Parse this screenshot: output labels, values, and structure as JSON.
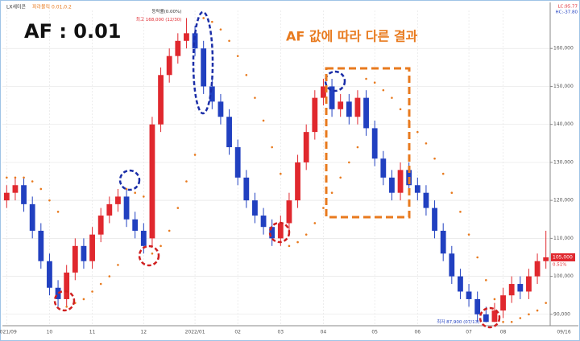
{
  "chart_data": {
    "type": "candlestick",
    "title": "LX세미콘",
    "headline": "AF : 0.01",
    "subtitle": "AF 값에 따라 다른 결과",
    "categories": [
      "2021/09",
      null,
      null,
      null,
      null,
      "10",
      null,
      null,
      null,
      null,
      "11",
      null,
      null,
      null,
      null,
      null,
      "12",
      null,
      null,
      null,
      null,
      null,
      "2022/01",
      null,
      null,
      null,
      null,
      "02",
      null,
      null,
      null,
      null,
      "03",
      null,
      null,
      null,
      null,
      "04",
      null,
      null,
      null,
      null,
      null,
      "05",
      null,
      null,
      null,
      null,
      "06",
      null,
      null,
      null,
      null,
      null,
      "07",
      null,
      null,
      null,
      "08",
      null,
      null,
      null,
      null,
      null
    ],
    "end_label": "09/16",
    "open": [
      120000,
      122000,
      124000,
      119000,
      112000,
      104000,
      97000,
      94000,
      101000,
      108000,
      104000,
      111000,
      116000,
      119000,
      121000,
      115000,
      112000,
      110000,
      140000,
      153000,
      158000,
      162000,
      164000,
      160000,
      150000,
      146000,
      142000,
      134000,
      126000,
      120000,
      116000,
      113000,
      110000,
      114000,
      120000,
      130000,
      138000,
      147000,
      150000,
      144000,
      146000,
      142000,
      147000,
      139000,
      131000,
      126000,
      122000,
      128000,
      124000,
      122000,
      118000,
      112000,
      106000,
      100000,
      96000,
      94000,
      90000,
      88000,
      91000,
      95000,
      98000,
      96000,
      100000,
      104000
    ],
    "high": [
      124000,
      126000,
      126000,
      121000,
      114000,
      106000,
      99000,
      103000,
      110000,
      110000,
      113000,
      118000,
      121000,
      123000,
      123000,
      117000,
      114000,
      142000,
      155000,
      160000,
      164000,
      168000,
      166000,
      162000,
      152000,
      148000,
      144000,
      136000,
      128000,
      122000,
      118000,
      115000,
      116000,
      122000,
      132000,
      140000,
      149000,
      152000,
      152000,
      148000,
      148000,
      149000,
      149000,
      141000,
      133000,
      128000,
      130000,
      130000,
      126000,
      124000,
      120000,
      114000,
      108000,
      102000,
      98000,
      96000,
      92000,
      93000,
      97000,
      100000,
      100000,
      102000,
      106000,
      112000
    ],
    "low": [
      118000,
      120000,
      117000,
      110000,
      102000,
      95000,
      92000,
      92000,
      99000,
      102000,
      102000,
      109000,
      114000,
      117000,
      113000,
      110000,
      106000,
      108000,
      138000,
      151000,
      156000,
      160000,
      158000,
      148000,
      144000,
      140000,
      132000,
      124000,
      118000,
      114000,
      111000,
      108000,
      108000,
      112000,
      118000,
      128000,
      136000,
      145000,
      142000,
      142000,
      140000,
      140000,
      137000,
      129000,
      124000,
      120000,
      120000,
      122000,
      120000,
      116000,
      110000,
      104000,
      98000,
      94000,
      92000,
      88000,
      87900,
      88000,
      89000,
      93000,
      94000,
      94000,
      98000,
      102000
    ],
    "close": [
      122000,
      124000,
      119000,
      112000,
      104000,
      97000,
      94000,
      101000,
      108000,
      104000,
      111000,
      116000,
      119000,
      121000,
      115000,
      112000,
      108000,
      140000,
      153000,
      158000,
      162000,
      164000,
      160000,
      150000,
      146000,
      142000,
      134000,
      126000,
      120000,
      116000,
      113000,
      110000,
      114000,
      120000,
      130000,
      138000,
      147000,
      150000,
      144000,
      146000,
      142000,
      147000,
      139000,
      131000,
      126000,
      122000,
      128000,
      124000,
      122000,
      118000,
      112000,
      106000,
      100000,
      96000,
      94000,
      90000,
      88000,
      91000,
      95000,
      98000,
      96000,
      100000,
      104000,
      105000
    ],
    "up_color": "#e0282e",
    "down_color": "#2140c0",
    "sar": {
      "name": "파라볼릭 0.01,0.2",
      "color": "#e87a1e",
      "values": [
        126000,
        126000,
        126000,
        125000,
        123000,
        120000,
        117000,
        92000,
        93000,
        94000,
        96000,
        98000,
        100000,
        103000,
        123000,
        122000,
        121000,
        106000,
        108000,
        112000,
        118000,
        125000,
        132000,
        168000,
        167000,
        165000,
        162000,
        158000,
        153000,
        147000,
        141000,
        134000,
        127000,
        108000,
        109000,
        111000,
        114000,
        118000,
        122000,
        126000,
        130000,
        134000,
        152000,
        151000,
        149000,
        147000,
        144000,
        141000,
        138000,
        135000,
        131000,
        127000,
        122000,
        117000,
        111000,
        105000,
        99000,
        94000,
        88000,
        88000,
        89000,
        90000,
        91000,
        93000
      ]
    },
    "ylim": [
      87000,
      170000
    ],
    "yticks": [
      {
        "value": 90000,
        "label": "90,000"
      },
      {
        "value": 100000,
        "label": "100,000"
      },
      {
        "value": 110000,
        "label": "110,000"
      },
      {
        "value": 120000,
        "label": "120,000"
      },
      {
        "value": 130000,
        "label": "130,000"
      },
      {
        "value": 140000,
        "label": "140,000"
      },
      {
        "value": 150000,
        "label": "150,000"
      },
      {
        "value": 160000,
        "label": "160,000"
      }
    ],
    "grid": true,
    "annotations": {
      "high_label": "최고 168,000 (12/30)",
      "low_label": "최저 87,900 (07/13)",
      "change_label": "등락률(0.00%)",
      "price_label": "105,000",
      "price_change": "0.51%",
      "top_right_1": "LC:95.77",
      "top_right_2": "HC:-37.80"
    }
  }
}
